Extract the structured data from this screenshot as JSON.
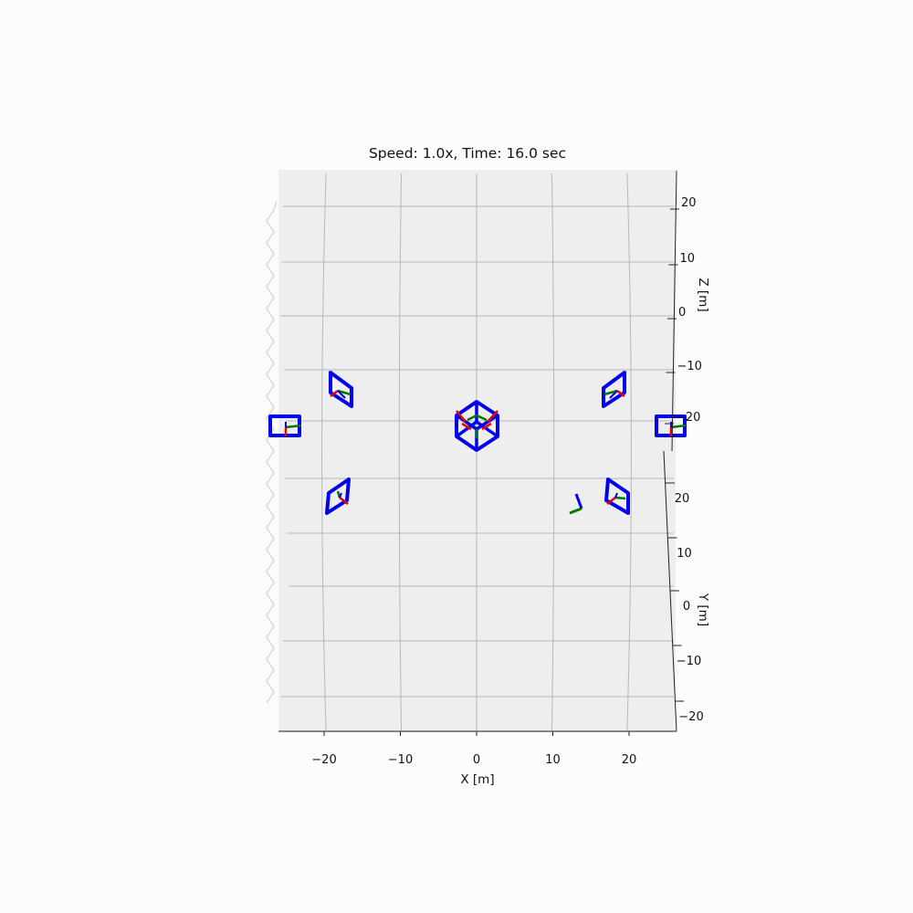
{
  "chart_data": {
    "type": "scatter",
    "title": "Speed: 1.0x, Time: 16.0 sec",
    "xlabel": "X [m]",
    "ylabel": "Y [m]",
    "zlabel": "Z [m]",
    "x_ticks": [
      "−20",
      "−10",
      "0",
      "10",
      "20"
    ],
    "y_ticks": [
      "20",
      "10",
      "0",
      "−10",
      "−20"
    ],
    "z_ticks": [
      "20",
      "10",
      "0",
      "−10",
      "−20"
    ],
    "xlim": [
      -25,
      25
    ],
    "ylim": [
      -25,
      25
    ],
    "zlim": [
      -25,
      25
    ],
    "grid": true,
    "colors": {
      "frame": "#0000ee",
      "axis_x": "#ee0000",
      "axis_y": "#007700",
      "axis_z": "#0000ee",
      "grid": "#b8b8b8"
    },
    "camera_frames": [
      {
        "x": -18.7,
        "y": 18,
        "z": -13
      },
      {
        "x": 18.7,
        "y": 18,
        "z": -13
      },
      {
        "x": -25,
        "y": 0,
        "z": 0
      },
      {
        "x": 25,
        "y": 0,
        "z": 0
      },
      {
        "x": -18,
        "y": -18,
        "z": 13
      },
      {
        "x": 19,
        "y": -18,
        "z": 13
      }
    ],
    "center_cube": {
      "x": 0,
      "y": 0,
      "z": 0
    },
    "loose_triad": {
      "x": 13,
      "y": -16,
      "z": 13
    }
  }
}
